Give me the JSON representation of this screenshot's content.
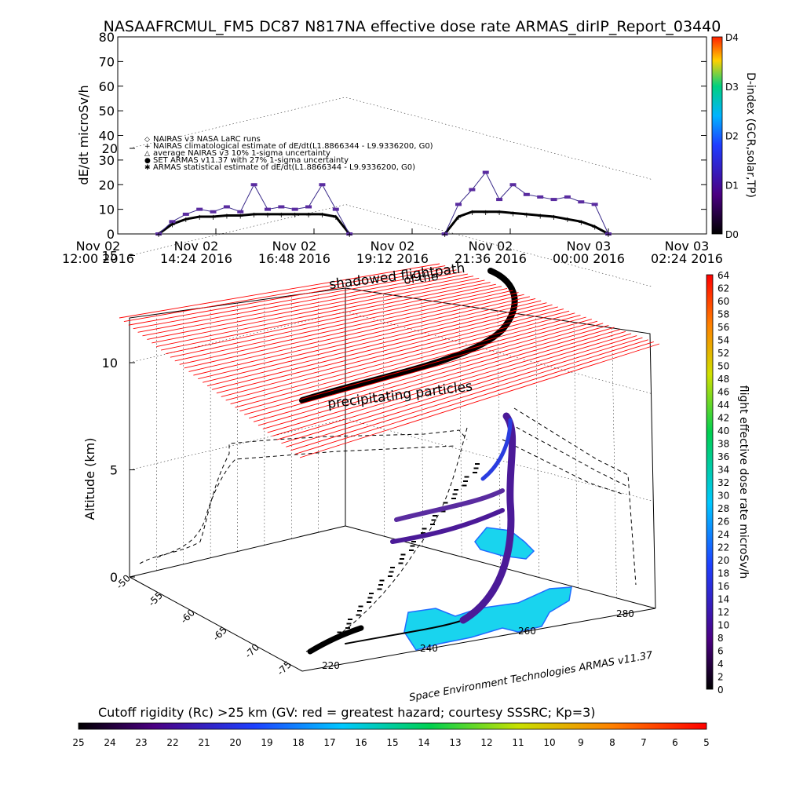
{
  "title": "NASAAFRCMUL_FM5 DC87 N817NA effective dose rate ARMAS_dirIP_Report_03440",
  "chart_data": [
    {
      "type": "scatter",
      "panel": "time-series",
      "ylabel": "dE/dt microSv/h",
      "ylim": [
        0,
        80
      ],
      "y_ticks": [
        "0",
        "10",
        "20",
        "30",
        "40",
        "50",
        "60",
        "70",
        "80"
      ],
      "x_ticks": [
        {
          "line1": "Nov 02",
          "line2": "12:00 2016"
        },
        {
          "line1": "Nov 02",
          "line2": "14:24 2016"
        },
        {
          "line1": "Nov 02",
          "line2": "16:48 2016"
        },
        {
          "line1": "Nov 02",
          "line2": "19:12 2016"
        },
        {
          "line1": "Nov 02",
          "line2": "21:36 2016"
        },
        {
          "line1": "Nov 03",
          "line2": "00:00 2016"
        },
        {
          "line1": "Nov 03",
          "line2": "02:24 2016"
        }
      ],
      "legend": [
        {
          "symbol": "◇",
          "label": "NAIRAS v3 NASA LaRC runs"
        },
        {
          "symbol": "+",
          "label": "NAIRAS climatological estimate of dE/dt(L1.8866344 - L9.9336200, G0)"
        },
        {
          "symbol": "△",
          "label": "average NAIRAS v3 10% 1-sigma uncertainty"
        },
        {
          "symbol": "●",
          "label": "SET ARMAS v11.37 with 27% 1-sigma uncertainty"
        },
        {
          "symbol": "✱",
          "label": "ARMAS statistical estimate of dE/dt(L1.8866344 - L9.9336200, G0)"
        }
      ],
      "legend_position": "upper-left",
      "right_axis": {
        "label": "D-index (GCR,solar,TP)",
        "ticks": [
          "D0",
          "D1",
          "D2",
          "D3",
          "D4"
        ]
      },
      "flights": [
        {
          "name": "leg-1",
          "times": [
            "13:00",
            "13:20",
            "13:40",
            "14:00",
            "14:20",
            "14:40",
            "15:00",
            "15:20",
            "15:40",
            "16:00",
            "16:20",
            "16:40",
            "17:00",
            "17:20",
            "17:40"
          ],
          "nairas": [
            0,
            4,
            6,
            7,
            7,
            7.5,
            7.5,
            8,
            8,
            8,
            8,
            8,
            8,
            7,
            0
          ],
          "armas": [
            0,
            5,
            8,
            10,
            9,
            11,
            9,
            20,
            10,
            11,
            10,
            11,
            20,
            10,
            0
          ]
        },
        {
          "name": "leg-2",
          "times": [
            "20:00",
            "20:20",
            "20:40",
            "21:00",
            "21:20",
            "21:40",
            "22:00",
            "22:20",
            "22:40",
            "23:00",
            "23:20",
            "23:40",
            "00:00"
          ],
          "nairas": [
            0,
            7,
            9,
            9,
            9,
            8.5,
            8,
            7.5,
            7,
            6,
            5,
            3,
            0
          ],
          "armas": [
            0,
            12,
            18,
            25,
            14,
            20,
            16,
            15,
            14,
            15,
            13,
            12,
            0
          ]
        }
      ]
    },
    {
      "type": "trajectory-3d",
      "panel": "flight-path",
      "zlabel": "Altitude (km)",
      "z_ticks": [
        "0",
        "5",
        "10",
        "15",
        "20"
      ],
      "lat_ticks": [
        "-50",
        "-55",
        "-60",
        "-65",
        "-70",
        "-75"
      ],
      "lon_ticks": [
        "220",
        "240",
        "260",
        "280"
      ],
      "annotations": [
        "shadowed flightpath",
        "of the",
        "precipitating particles"
      ],
      "credit": "Space Environment Technologies ARMAS v11.37",
      "right_colorbar": {
        "label": "flight effective dose rate microSv/h",
        "ticks": [
          "0",
          "2",
          "4",
          "6",
          "8",
          "10",
          "12",
          "14",
          "16",
          "18",
          "20",
          "22",
          "24",
          "26",
          "28",
          "30",
          "32",
          "34",
          "36",
          "38",
          "40",
          "42",
          "44",
          "46",
          "48",
          "50",
          "52",
          "54",
          "56",
          "58",
          "60",
          "62",
          "64"
        ]
      }
    },
    {
      "type": "colorbar",
      "panel": "cutoff-rigidity",
      "label": "Cutoff rigidity (Rc) >25 km (GV: red = greatest hazard; courtesy SSSRC; Kp=3)",
      "ticks": [
        "25",
        "24",
        "23",
        "22",
        "21",
        "20",
        "19",
        "18",
        "17",
        "16",
        "15",
        "14",
        "13",
        "12",
        "11",
        "10",
        "9",
        "8",
        "7",
        "6",
        "5"
      ]
    }
  ],
  "colors": {
    "cutoff_band": "#ff0000",
    "track": "#000000",
    "armas_point": "#5a2ca0"
  }
}
